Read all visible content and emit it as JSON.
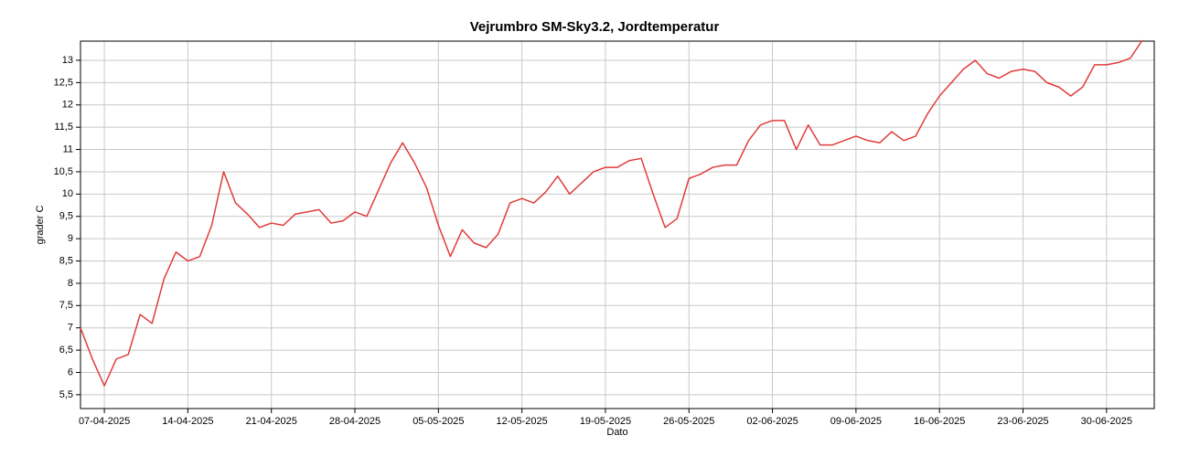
{
  "chart_data": {
    "type": "line",
    "title": "Vejrumbro SM-Sky3.2, Jordtemperatur",
    "xlabel": "Dato",
    "ylabel": "grader C",
    "color": "#e03c3c",
    "grid": true,
    "x": [
      "05-04-2025",
      "06-04-2025",
      "07-04-2025",
      "08-04-2025",
      "09-04-2025",
      "10-04-2025",
      "11-04-2025",
      "12-04-2025",
      "13-04-2025",
      "14-04-2025",
      "15-04-2025",
      "16-04-2025",
      "17-04-2025",
      "18-04-2025",
      "19-04-2025",
      "20-04-2025",
      "21-04-2025",
      "22-04-2025",
      "23-04-2025",
      "24-04-2025",
      "25-04-2025",
      "26-04-2025",
      "27-04-2025",
      "28-04-2025",
      "29-04-2025",
      "30-04-2025",
      "01-05-2025",
      "02-05-2025",
      "03-05-2025",
      "04-05-2025",
      "05-05-2025",
      "06-05-2025",
      "07-05-2025",
      "08-05-2025",
      "09-05-2025",
      "10-05-2025",
      "11-05-2025",
      "12-05-2025",
      "13-05-2025",
      "14-05-2025",
      "15-05-2025",
      "16-05-2025",
      "17-05-2025",
      "18-05-2025",
      "19-05-2025",
      "20-05-2025",
      "21-05-2025",
      "22-05-2025",
      "23-05-2025",
      "24-05-2025",
      "25-05-2025",
      "26-05-2025",
      "27-05-2025",
      "28-05-2025",
      "29-05-2025",
      "30-05-2025",
      "31-05-2025",
      "01-06-2025",
      "02-06-2025",
      "03-06-2025",
      "04-06-2025",
      "05-06-2025",
      "06-06-2025",
      "07-06-2025",
      "08-06-2025",
      "09-06-2025",
      "10-06-2025",
      "11-06-2025",
      "12-06-2025",
      "13-06-2025",
      "14-06-2025",
      "15-06-2025",
      "16-06-2025",
      "17-06-2025",
      "18-06-2025",
      "19-06-2025",
      "20-06-2025",
      "21-06-2025",
      "22-06-2025",
      "23-06-2025",
      "24-06-2025",
      "25-06-2025",
      "26-06-2025",
      "27-06-2025",
      "28-06-2025",
      "29-06-2025",
      "30-06-2025",
      "01-07-2025",
      "02-07-2025",
      "03-07-2025"
    ],
    "values": [
      7.0,
      6.3,
      5.7,
      6.3,
      6.4,
      7.3,
      7.1,
      8.1,
      8.7,
      8.5,
      8.6,
      9.3,
      10.5,
      9.8,
      9.55,
      9.25,
      9.35,
      9.3,
      9.55,
      9.6,
      9.65,
      9.35,
      9.4,
      9.6,
      9.5,
      10.1,
      10.7,
      11.15,
      10.7,
      10.15,
      9.3,
      8.6,
      9.2,
      8.9,
      8.8,
      9.1,
      9.8,
      9.9,
      9.8,
      10.05,
      10.4,
      10.0,
      10.25,
      10.5,
      10.6,
      10.6,
      10.75,
      10.8,
      10.0,
      9.25,
      9.45,
      10.35,
      10.45,
      10.6,
      10.65,
      10.65,
      11.2,
      11.55,
      11.65,
      11.65,
      11.0,
      11.55,
      11.1,
      11.1,
      11.2,
      11.3,
      11.2,
      11.15,
      11.4,
      11.2,
      11.3,
      11.8,
      12.2,
      12.5,
      12.8,
      13.0,
      12.7,
      12.6,
      12.75,
      12.8,
      12.75,
      12.5,
      12.4,
      12.2,
      12.4,
      12.9,
      12.9,
      12.95,
      13.05,
      13.45
    ],
    "xlim": [
      "05-04-2025",
      "04-07-2025"
    ],
    "xticks": [
      "07-04-2025",
      "14-04-2025",
      "21-04-2025",
      "28-04-2025",
      "05-05-2025",
      "12-05-2025",
      "19-05-2025",
      "26-05-2025",
      "02-06-2025",
      "09-06-2025",
      "16-06-2025",
      "23-06-2025",
      "30-06-2025"
    ],
    "ylim": [
      5.19,
      13.43
    ],
    "yticks": [
      {
        "value": 5.5,
        "label": "5,5"
      },
      6,
      {
        "value": 6.5,
        "label": "6,5"
      },
      7,
      {
        "value": 7.5,
        "label": "7,5"
      },
      8,
      {
        "value": 8.5,
        "label": "8,5"
      },
      9,
      {
        "value": 9.5,
        "label": "9,5"
      },
      10,
      {
        "value": 10.5,
        "label": "10,5"
      },
      11,
      {
        "value": 11.5,
        "label": "11,5"
      },
      12,
      {
        "value": 12.5,
        "label": "12,5"
      },
      13
    ]
  }
}
